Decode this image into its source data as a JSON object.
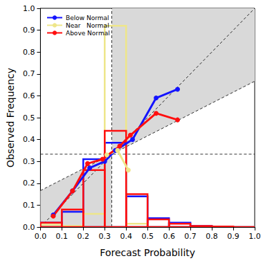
{
  "chart_data": {
    "type": "reliability",
    "xlabel": "Forecast Probability",
    "ylabel": "Observed Frequency",
    "xlim": [
      0,
      1
    ],
    "ylim": [
      0,
      1
    ],
    "xticks": [
      {
        "value": 0,
        "label": "0.0"
      },
      {
        "value": 0.1,
        "label": "0.1"
      },
      {
        "value": 0.2,
        "label": "0.2"
      },
      {
        "value": 0.3,
        "label": "0.3"
      },
      {
        "value": 0.4,
        "label": "0.4"
      },
      {
        "value": 0.5,
        "label": "0.5"
      },
      {
        "value": 0.6,
        "label": "0.6"
      },
      {
        "value": 0.7,
        "label": "0.7"
      },
      {
        "value": 0.8,
        "label": "0.8"
      },
      {
        "value": 0.9,
        "label": "0.9"
      },
      {
        "value": 1,
        "label": "1.0"
      }
    ],
    "yticks": [
      {
        "value": 0,
        "label": "0.0"
      },
      {
        "value": 0.1,
        "label": "0.1"
      },
      {
        "value": 0.2,
        "label": "0.2"
      },
      {
        "value": 0.3,
        "label": "0.3"
      },
      {
        "value": 0.4,
        "label": "0.4"
      },
      {
        "value": 0.5,
        "label": "0.5"
      },
      {
        "value": 0.6,
        "label": "0.6"
      },
      {
        "value": 0.7,
        "label": "0.7"
      },
      {
        "value": 0.8,
        "label": "0.8"
      },
      {
        "value": 0.9,
        "label": "0.9"
      },
      {
        "value": 1,
        "label": "1.0"
      }
    ],
    "climatology": 0.333,
    "bins": [
      0,
      0.1,
      0.2,
      0.3,
      0.4,
      0.5,
      0.6,
      0.7,
      0.8,
      0.9,
      1.0
    ],
    "legend": "upper left",
    "grid": false,
    "series": [
      {
        "name": "Below Normal",
        "color": "#1414ff",
        "marker": "circle",
        "x": [
          0.06,
          0.15,
          0.23,
          0.3,
          0.35,
          0.43,
          0.54,
          0.64
        ],
        "values": [
          0.055,
          0.165,
          0.27,
          0.3,
          0.35,
          0.4,
          0.59,
          0.63
        ],
        "frequencies": [
          0.02,
          0.07,
          0.31,
          0.385,
          0.14,
          0.04,
          0.02,
          0.005,
          0,
          0
        ]
      },
      {
        "name": "Near   Normal",
        "color": "#eee68a",
        "marker": "circle",
        "x": [
          0.31,
          0.36,
          0.41
        ],
        "values": [
          0.33,
          0.35,
          0.26
        ],
        "frequencies": [
          0.01,
          0.005,
          0.06,
          0.92,
          0.015,
          0,
          0,
          0,
          0,
          0
        ]
      },
      {
        "name": "Above Normal",
        "color": "#ff0f0f",
        "marker": "circle",
        "x": [
          0.06,
          0.15,
          0.22,
          0.29,
          0.37,
          0.42,
          0.54,
          0.64
        ],
        "values": [
          0.05,
          0.165,
          0.29,
          0.31,
          0.37,
          0.42,
          0.52,
          0.49
        ],
        "frequencies": [
          0.02,
          0.08,
          0.26,
          0.44,
          0.15,
          0.035,
          0.015,
          0.005,
          0.002,
          0
        ]
      }
    ]
  }
}
